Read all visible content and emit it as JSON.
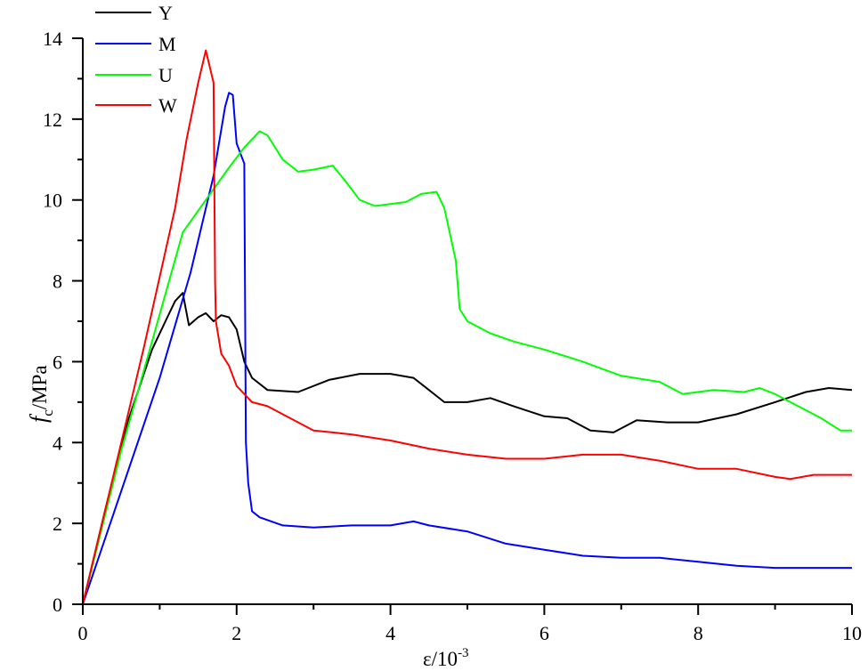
{
  "chart_data": {
    "type": "line",
    "title": "",
    "xlabel": "ε/10^-3",
    "xlabel_main": "ε/10",
    "xlabel_sup": "-3",
    "ylabel": "f_c/MPa",
    "ylabel_f": "f",
    "ylabel_sub": "c",
    "ylabel_rest": "/MPa",
    "xlim": [
      0,
      10
    ],
    "ylim": [
      0,
      14
    ],
    "x_ticks": [
      "0",
      "2",
      "4",
      "6",
      "8",
      "10"
    ],
    "y_ticks": [
      "0",
      "2",
      "4",
      "6",
      "8",
      "10",
      "12",
      "14"
    ],
    "grid": false,
    "legend_position": "top-left",
    "series": [
      {
        "name": "Y",
        "color": "#000000",
        "x": [
          0,
          0.3,
          0.6,
          0.9,
          1.1,
          1.2,
          1.3,
          1.38,
          1.5,
          1.6,
          1.7,
          1.8,
          1.9,
          2.0,
          2.1,
          2.2,
          2.4,
          2.8,
          3.2,
          3.6,
          4.0,
          4.3,
          4.5,
          4.7,
          5.0,
          5.3,
          5.6,
          6.0,
          6.3,
          6.6,
          6.9,
          7.2,
          7.6,
          8.0,
          8.5,
          9.0,
          9.4,
          9.7,
          10.0
        ],
        "y": [
          0,
          2.4,
          4.6,
          6.3,
          7.1,
          7.5,
          7.7,
          6.9,
          7.1,
          7.2,
          7.0,
          7.15,
          7.1,
          6.8,
          6.0,
          5.6,
          5.3,
          5.25,
          5.55,
          5.7,
          5.7,
          5.6,
          5.3,
          5.0,
          5.0,
          5.1,
          4.9,
          4.65,
          4.6,
          4.3,
          4.25,
          4.55,
          4.5,
          4.5,
          4.7,
          5.0,
          5.25,
          5.35,
          5.3
        ]
      },
      {
        "name": "M",
        "color": "#0000ff",
        "x": [
          0,
          0.5,
          1.0,
          1.4,
          1.7,
          1.85,
          1.9,
          1.95,
          2.0,
          2.1,
          2.12,
          2.15,
          2.2,
          2.3,
          2.6,
          3.0,
          3.5,
          4.0,
          4.3,
          4.5,
          5.0,
          5.5,
          6.0,
          6.5,
          7.0,
          7.5,
          8.0,
          8.5,
          9.0,
          9.5,
          10.0
        ],
        "y": [
          0,
          2.8,
          5.6,
          8.2,
          10.6,
          12.3,
          12.65,
          12.6,
          11.4,
          10.9,
          4.0,
          3.0,
          2.3,
          2.15,
          1.95,
          1.9,
          1.95,
          1.95,
          2.05,
          1.95,
          1.8,
          1.5,
          1.35,
          1.2,
          1.15,
          1.15,
          1.05,
          0.95,
          0.9,
          0.9,
          0.9
        ]
      },
      {
        "name": "U",
        "color": "#00ff00",
        "x": [
          0,
          0.5,
          0.9,
          1.3,
          1.6,
          1.9,
          2.1,
          2.3,
          2.4,
          2.6,
          2.8,
          3.0,
          3.25,
          3.4,
          3.6,
          3.8,
          4.0,
          4.2,
          4.4,
          4.6,
          4.7,
          4.85,
          4.9,
          5.0,
          5.3,
          5.6,
          6.0,
          6.5,
          7.0,
          7.5,
          7.8,
          8.2,
          8.6,
          8.8,
          9.0,
          9.3,
          9.6,
          9.85,
          10.0
        ],
        "y": [
          0,
          3.8,
          6.5,
          9.2,
          10.0,
          10.8,
          11.3,
          11.7,
          11.6,
          11.0,
          10.7,
          10.75,
          10.85,
          10.5,
          10.0,
          9.85,
          9.9,
          9.95,
          10.15,
          10.2,
          9.8,
          8.5,
          7.3,
          7.0,
          6.7,
          6.5,
          6.3,
          6.0,
          5.65,
          5.5,
          5.2,
          5.3,
          5.25,
          5.35,
          5.2,
          4.9,
          4.6,
          4.3,
          4.3
        ]
      },
      {
        "name": "W",
        "color": "#ff0000",
        "x": [
          0,
          0.4,
          0.8,
          1.2,
          1.35,
          1.5,
          1.6,
          1.7,
          1.72,
          1.73,
          1.8,
          1.9,
          2.0,
          2.2,
          2.4,
          2.6,
          2.8,
          3.0,
          3.5,
          4.0,
          4.5,
          5.0,
          5.5,
          6.0,
          6.5,
          7.0,
          7.5,
          8.0,
          8.5,
          9.0,
          9.2,
          9.5,
          10.0
        ],
        "y": [
          0,
          3.2,
          6.4,
          9.8,
          11.5,
          12.9,
          13.7,
          12.9,
          8.0,
          7.0,
          6.2,
          5.9,
          5.4,
          5.0,
          4.9,
          4.7,
          4.5,
          4.3,
          4.2,
          4.05,
          3.85,
          3.7,
          3.6,
          3.6,
          3.7,
          3.7,
          3.55,
          3.35,
          3.35,
          3.15,
          3.1,
          3.2,
          3.2
        ]
      }
    ]
  }
}
